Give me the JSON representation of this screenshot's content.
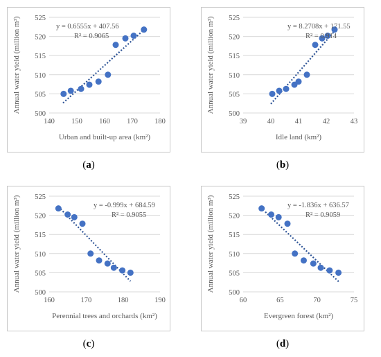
{
  "chart_data": [
    {
      "type": "scatter",
      "panel_label": "a",
      "xlabel": "Urban and built-up area (km²)",
      "ylabel": "Annual water yield (million m³)",
      "xlim": [
        140,
        180
      ],
      "ylim": [
        500,
        525
      ],
      "xticks": [
        140,
        150,
        160,
        170,
        180
      ],
      "yticks": [
        500,
        505,
        510,
        515,
        520,
        525
      ],
      "equation": "y = 0.6555x + 407.56",
      "r2": "R² = 0.9065",
      "trendline": {
        "slope": 0.6555,
        "intercept": 407.56,
        "x_range": [
          145,
          174.5
        ]
      },
      "grid": true,
      "points": [
        [
          145.2,
          505.0
        ],
        [
          147.8,
          505.8
        ],
        [
          151.5,
          506.3
        ],
        [
          154.5,
          507.4
        ],
        [
          157.8,
          508.2
        ],
        [
          161.2,
          510.0
        ],
        [
          164.0,
          517.8
        ],
        [
          167.5,
          519.5
        ],
        [
          170.5,
          520.2
        ],
        [
          174.2,
          521.8
        ]
      ]
    },
    {
      "type": "scatter",
      "panel_label": "b",
      "xlabel": "Idle land (km²)",
      "ylabel": "Annual water yield (million m³)",
      "xlim": [
        39,
        43
      ],
      "ylim": [
        500,
        525
      ],
      "xticks": [
        39,
        40,
        41,
        42,
        43
      ],
      "yticks": [
        500,
        505,
        510,
        515,
        520,
        525
      ],
      "equation": "y = 8.2708x + 171.55",
      "r2": "R² = 0.914",
      "trendline": {
        "slope": 8.2708,
        "intercept": 171.55,
        "x_range": [
          40.0,
          42.3
        ]
      },
      "grid": true,
      "points": [
        [
          40.05,
          505.0
        ],
        [
          40.3,
          505.8
        ],
        [
          40.55,
          506.3
        ],
        [
          40.85,
          507.4
        ],
        [
          41.0,
          508.2
        ],
        [
          41.3,
          510.0
        ],
        [
          41.6,
          517.8
        ],
        [
          41.85,
          519.5
        ],
        [
          42.05,
          520.2
        ],
        [
          42.3,
          521.8
        ]
      ]
    },
    {
      "type": "scatter",
      "panel_label": "c",
      "xlabel": "Perennial trees and orchards (km²)",
      "ylabel": "Annual water yield (million m³)",
      "xlim": [
        160,
        190
      ],
      "ylim": [
        500,
        525
      ],
      "xticks": [
        160,
        170,
        180,
        190
      ],
      "yticks": [
        500,
        505,
        510,
        515,
        520,
        525
      ],
      "equation": "y = -0.999x + 684.59",
      "r2": "R² = 0.9055",
      "trendline": {
        "slope": -0.999,
        "intercept": 684.59,
        "x_range": [
          162.5,
          182
        ]
      },
      "grid": true,
      "points": [
        [
          162.5,
          521.8
        ],
        [
          165.0,
          520.2
        ],
        [
          166.8,
          519.5
        ],
        [
          169.0,
          517.8
        ],
        [
          171.2,
          510.0
        ],
        [
          173.5,
          508.2
        ],
        [
          175.8,
          507.4
        ],
        [
          177.5,
          506.3
        ],
        [
          179.8,
          505.6
        ],
        [
          182.0,
          505.0
        ]
      ]
    },
    {
      "type": "scatter",
      "panel_label": "d",
      "xlabel": "Evergreen forest (km²)",
      "ylabel": "Annual water yield (million m³)",
      "xlim": [
        60,
        75
      ],
      "ylim": [
        500,
        525
      ],
      "xticks": [
        60,
        65,
        70,
        75
      ],
      "yticks": [
        500,
        505,
        510,
        515,
        520,
        525
      ],
      "equation": "y = -1.836x + 636.57",
      "r2": "R² = 0.9059",
      "trendline": {
        "slope": -1.836,
        "intercept": 636.57,
        "x_range": [
          63,
          73
        ]
      },
      "grid": true,
      "points": [
        [
          62.5,
          521.8
        ],
        [
          63.8,
          520.2
        ],
        [
          64.8,
          519.5
        ],
        [
          66.0,
          517.8
        ],
        [
          67.0,
          510.0
        ],
        [
          68.2,
          508.2
        ],
        [
          69.5,
          507.4
        ],
        [
          70.5,
          506.3
        ],
        [
          71.7,
          505.6
        ],
        [
          72.9,
          505.0
        ]
      ]
    }
  ],
  "colors": {
    "marker": "#4472c4",
    "trendline": "#2f5597",
    "grid": "#d9d9d9",
    "text": "#595959"
  }
}
